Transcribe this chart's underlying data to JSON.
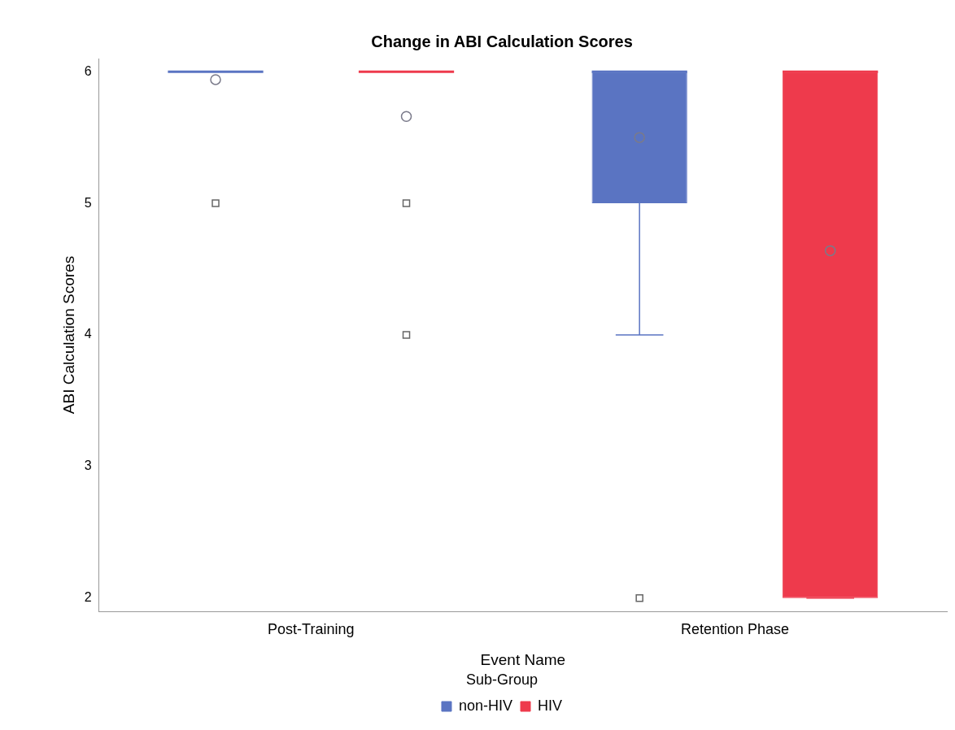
{
  "chart_data": {
    "type": "box",
    "title": "Change in ABI Calculation Scores",
    "xlabel": "Event Name",
    "ylabel": "ABI Calculation Scores",
    "legend_title": "Sub-Group",
    "legend": "bottom",
    "grid": false,
    "categories": [
      "Post-Training",
      "Retention Phase"
    ],
    "ylim": [
      1.9,
      6.1
    ],
    "yticks": [
      2,
      3,
      4,
      5,
      6
    ],
    "series": [
      {
        "name": "non-HIV",
        "color": "#5a74c2",
        "boxes": [
          {
            "low": 6,
            "q1": 6,
            "median": 6,
            "q3": 6,
            "high": 6,
            "mean": 5.94,
            "outliers": [
              5
            ]
          },
          {
            "low": 4,
            "q1": 5,
            "median": 6,
            "q3": 6,
            "high": 6,
            "mean": 5.5,
            "outliers": [
              2
            ]
          }
        ]
      },
      {
        "name": "HIV",
        "color": "#ee3a4c",
        "boxes": [
          {
            "low": 6,
            "q1": 6,
            "median": 6,
            "q3": 6,
            "high": 6,
            "mean": 5.66,
            "outliers": [
              5,
              4
            ]
          },
          {
            "low": 2,
            "q1": 2,
            "median": 6,
            "q3": 6,
            "high": 6,
            "mean": 4.64
          }
        ]
      }
    ]
  }
}
